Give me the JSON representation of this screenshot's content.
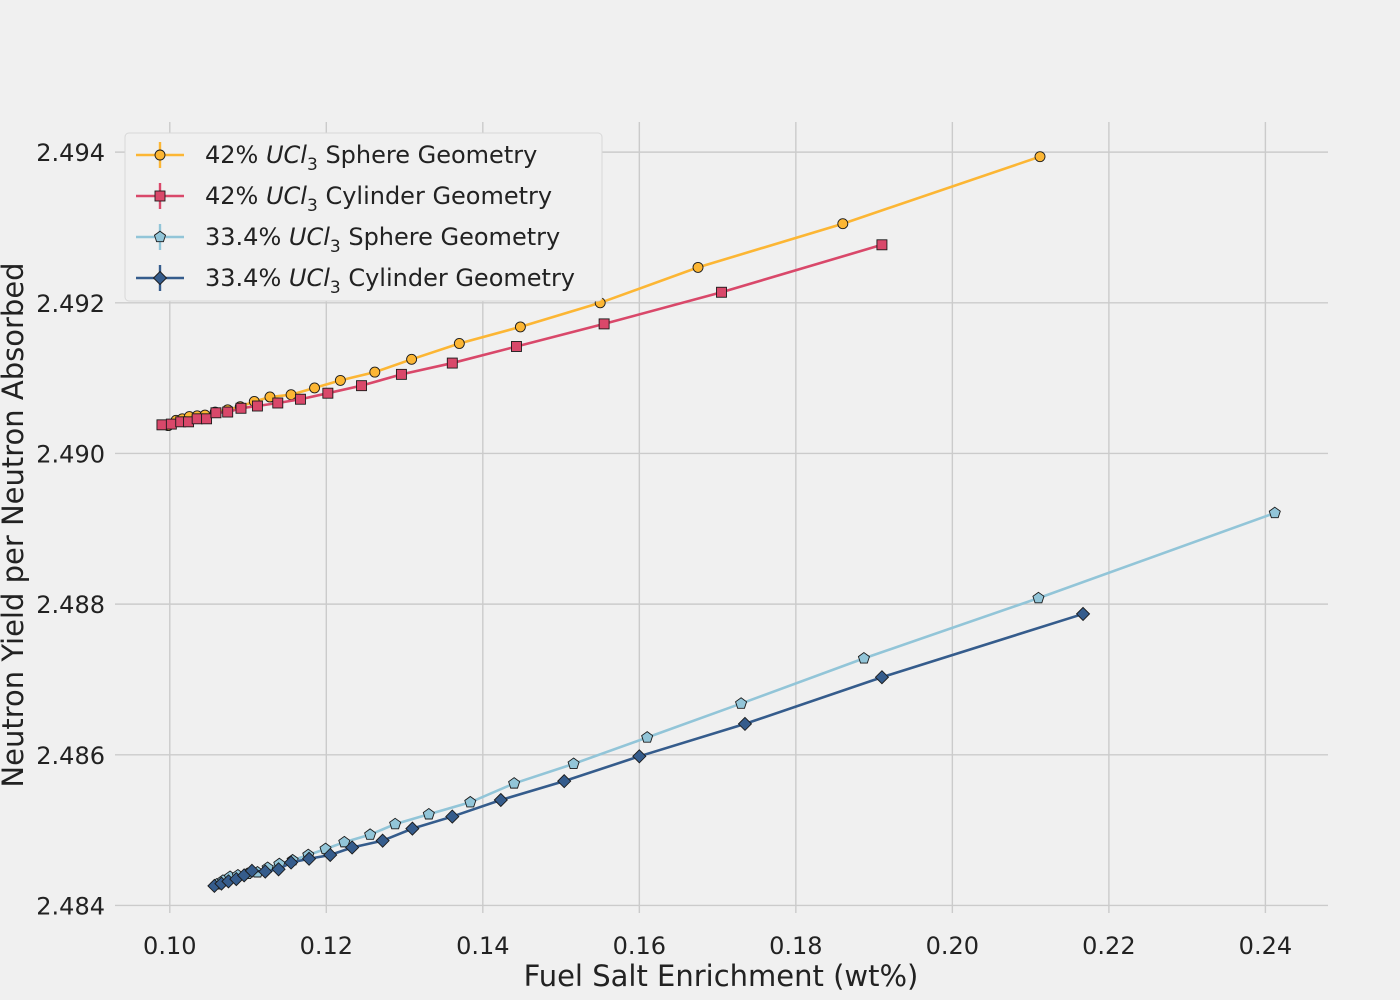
{
  "chart_data": {
    "type": "line",
    "title": "",
    "xlabel": "Fuel Salt Enrichment (wt%)",
    "ylabel": "Neutron Yield per Neutron Absorbed",
    "xlim": [
      0.093,
      0.248
    ],
    "ylim": [
      2.4839,
      2.4944
    ],
    "xticks": [
      0.1,
      0.12,
      0.14,
      0.16,
      0.18,
      0.2,
      0.22,
      0.24
    ],
    "xtick_labels": [
      "0.10",
      "0.12",
      "0.14",
      "0.16",
      "0.18",
      "0.20",
      "0.22",
      "0.24"
    ],
    "yticks": [
      2.484,
      2.486,
      2.488,
      2.49,
      2.492,
      2.494
    ],
    "ytick_labels": [
      "2.484",
      "2.486",
      "2.488",
      "2.490",
      "2.492",
      "2.494"
    ],
    "grid": true,
    "legend_position": "top-left",
    "series": [
      {
        "name": "42% UCl3 Sphere Geometry",
        "legend_prefix": "42% ",
        "legend_formula": "UCl",
        "legend_sub": "3",
        "legend_suffix": " Sphere Geometry",
        "color": "#fcb634",
        "marker": "circle",
        "x": [
          0.0998,
          0.1008,
          0.1016,
          0.1025,
          0.1035,
          0.1045,
          0.1058,
          0.1074,
          0.109,
          0.1108,
          0.1128,
          0.1155,
          0.1185,
          0.1218,
          0.1262,
          0.1309,
          0.137,
          0.1448,
          0.155,
          0.1675,
          0.186,
          0.2112
        ],
        "y": [
          2.49037,
          2.49044,
          2.49046,
          2.49049,
          2.4905,
          2.49051,
          2.49055,
          2.49058,
          2.49062,
          2.49069,
          2.49075,
          2.49078,
          2.49087,
          2.49097,
          2.49108,
          2.49125,
          2.49146,
          2.49168,
          2.492,
          2.49247,
          2.49305,
          2.49394
        ]
      },
      {
        "name": "42% UCl3 Cylinder Geometry",
        "legend_prefix": "42% ",
        "legend_formula": "UCl",
        "legend_sub": "3",
        "legend_suffix": " Cylinder Geometry",
        "color": "#d9486a",
        "marker": "square",
        "x": [
          0.099,
          0.1002,
          0.1014,
          0.1024,
          0.1035,
          0.1047,
          0.1059,
          0.1074,
          0.1091,
          0.1112,
          0.1138,
          0.1167,
          0.1202,
          0.1245,
          0.1296,
          0.1361,
          0.1443,
          0.1555,
          0.1705,
          0.191
        ],
        "y": [
          2.49038,
          2.49039,
          2.49042,
          2.49042,
          2.49046,
          2.49046,
          2.49054,
          2.49055,
          2.4906,
          2.49063,
          2.49067,
          2.49072,
          2.4908,
          2.4909,
          2.49105,
          2.4912,
          2.49142,
          2.49172,
          2.49214,
          2.49277
        ]
      },
      {
        "name": "33.4% UCl3 Sphere Geometry",
        "legend_prefix": "33.4% ",
        "legend_formula": "UCl",
        "legend_sub": "3",
        "legend_suffix": " Sphere Geometry",
        "color": "#92c5d8",
        "marker": "pentagon",
        "x": [
          0.106,
          0.1068,
          0.1077,
          0.1087,
          0.1099,
          0.1112,
          0.1125,
          0.114,
          0.1157,
          0.1177,
          0.1199,
          0.1223,
          0.1256,
          0.1288,
          0.1331,
          0.1384,
          0.144,
          0.1516,
          0.161,
          0.173,
          0.1887,
          0.211,
          0.2412
        ],
        "y": [
          2.48428,
          2.48433,
          2.48438,
          2.4844,
          2.48442,
          2.48444,
          2.4845,
          2.48455,
          2.4846,
          2.48467,
          2.48475,
          2.48484,
          2.48494,
          2.48508,
          2.48521,
          2.48537,
          2.48562,
          2.48588,
          2.48623,
          2.48668,
          2.48728,
          2.48808,
          2.48921
        ]
      },
      {
        "name": "33.4% UCl3 Cylinder Geometry",
        "legend_prefix": "33.4% ",
        "legend_formula": "UCl",
        "legend_sub": "3",
        "legend_suffix": " Cylinder Geometry",
        "color": "#355c8c",
        "marker": "diamond",
        "x": [
          0.1057,
          0.1066,
          0.1075,
          0.1085,
          0.1095,
          0.1105,
          0.1122,
          0.1139,
          0.1155,
          0.1178,
          0.1205,
          0.1233,
          0.1272,
          0.131,
          0.1361,
          0.1423,
          0.1504,
          0.16,
          0.1735,
          0.191,
          0.2167
        ],
        "y": [
          2.48426,
          2.48429,
          2.48432,
          2.48435,
          2.4844,
          2.48446,
          2.48445,
          2.48448,
          2.48457,
          2.48462,
          2.48467,
          2.48477,
          2.48486,
          2.48502,
          2.48518,
          2.4854,
          2.48565,
          2.48598,
          2.48641,
          2.48703,
          2.48787
        ]
      }
    ]
  }
}
